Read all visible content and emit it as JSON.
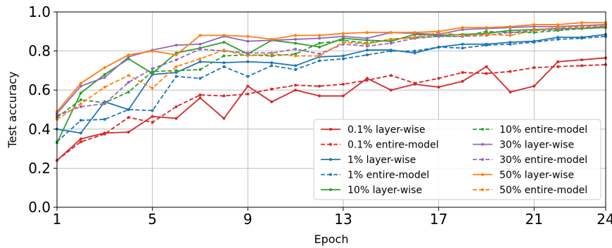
{
  "chart_data": {
    "type": "line",
    "xlabel": "Epoch",
    "ylabel": "Test accuracy",
    "xlim": [
      1,
      24
    ],
    "ylim": [
      0.0,
      1.0
    ],
    "xticks": [
      "1",
      "5",
      "9",
      "13",
      "17",
      "21",
      "24"
    ],
    "yticks": [
      "0.0",
      "0.2",
      "0.4",
      "0.6",
      "0.8",
      "1.0"
    ],
    "grid": true,
    "legend_position": "lower-right",
    "x": [
      1,
      2,
      3,
      4,
      5,
      6,
      7,
      8,
      9,
      10,
      11,
      12,
      13,
      14,
      15,
      16,
      17,
      18,
      19,
      20,
      21,
      22,
      23,
      24
    ],
    "series": [
      {
        "name": "0.1% layer-wise",
        "color": "#d62728",
        "dash": "solid",
        "values": [
          0.24,
          0.35,
          0.38,
          0.385,
          0.465,
          0.455,
          0.56,
          0.455,
          0.62,
          0.54,
          0.6,
          0.57,
          0.57,
          0.66,
          0.6,
          0.63,
          0.615,
          0.645,
          0.72,
          0.59,
          0.62,
          0.745,
          0.755,
          0.765
        ]
      },
      {
        "name": "0.1% entire-model",
        "color": "#d62728",
        "dash": "dashed",
        "values": [
          0.24,
          0.335,
          0.375,
          0.46,
          0.435,
          0.515,
          0.575,
          0.57,
          0.58,
          0.605,
          0.625,
          0.62,
          0.63,
          0.65,
          0.675,
          0.635,
          0.66,
          0.69,
          0.685,
          0.695,
          0.715,
          0.72,
          0.725,
          0.73
        ]
      },
      {
        "name": "1% layer-wise",
        "color": "#1f77b4",
        "dash": "solid",
        "values": [
          0.4,
          0.38,
          0.54,
          0.5,
          0.68,
          0.69,
          0.745,
          0.74,
          0.745,
          0.74,
          0.725,
          0.77,
          0.775,
          0.805,
          0.805,
          0.79,
          0.82,
          0.835,
          0.835,
          0.845,
          0.85,
          0.87,
          0.87,
          0.885
        ]
      },
      {
        "name": "1% entire-model",
        "color": "#1f77b4",
        "dash": "dashed",
        "values": [
          0.335,
          0.445,
          0.45,
          0.5,
          0.495,
          0.67,
          0.66,
          0.72,
          0.67,
          0.725,
          0.705,
          0.75,
          0.76,
          0.78,
          0.8,
          0.8,
          0.82,
          0.815,
          0.83,
          0.835,
          0.845,
          0.86,
          0.865,
          0.875
        ]
      },
      {
        "name": "10% layer-wise",
        "color": "#2ca02c",
        "dash": "solid",
        "values": [
          0.33,
          0.585,
          0.68,
          0.76,
          0.685,
          0.79,
          0.815,
          0.845,
          0.785,
          0.855,
          0.84,
          0.82,
          0.865,
          0.855,
          0.85,
          0.885,
          0.88,
          0.885,
          0.89,
          0.905,
          0.91,
          0.915,
          0.915,
          0.92
        ]
      },
      {
        "name": "10% entire-model",
        "color": "#2ca02c",
        "dash": "dashed",
        "values": [
          0.46,
          0.55,
          0.535,
          0.59,
          0.695,
          0.7,
          0.705,
          0.775,
          0.78,
          0.775,
          0.785,
          0.84,
          0.855,
          0.84,
          0.86,
          0.87,
          0.875,
          0.875,
          0.9,
          0.895,
          0.895,
          0.905,
          0.915,
          0.925
        ]
      },
      {
        "name": "30% layer-wise",
        "color": "#9467bd",
        "dash": "solid",
        "values": [
          0.48,
          0.62,
          0.665,
          0.77,
          0.805,
          0.83,
          0.835,
          0.875,
          0.85,
          0.855,
          0.86,
          0.865,
          0.875,
          0.865,
          0.895,
          0.89,
          0.885,
          0.91,
          0.915,
          0.92,
          0.925,
          0.925,
          0.93,
          0.935
        ]
      },
      {
        "name": "30% entire-model",
        "color": "#9467bd",
        "dash": "dashed",
        "values": [
          0.47,
          0.515,
          0.53,
          0.64,
          0.71,
          0.755,
          0.81,
          0.8,
          0.79,
          0.79,
          0.81,
          0.785,
          0.835,
          0.825,
          0.84,
          0.865,
          0.875,
          0.875,
          0.88,
          0.895,
          0.905,
          0.91,
          0.92,
          0.925
        ]
      },
      {
        "name": "50% layer-wise",
        "color": "#ff7f0e",
        "dash": "solid",
        "values": [
          0.49,
          0.635,
          0.715,
          0.78,
          0.8,
          0.78,
          0.88,
          0.88,
          0.875,
          0.86,
          0.88,
          0.88,
          0.89,
          0.895,
          0.895,
          0.895,
          0.9,
          0.92,
          0.92,
          0.925,
          0.935,
          0.935,
          0.945,
          0.945
        ]
      },
      {
        "name": "50% entire-model",
        "color": "#ff7f0e",
        "dash": "dashed",
        "values": [
          0.45,
          0.53,
          0.615,
          0.675,
          0.61,
          0.72,
          0.76,
          0.805,
          0.775,
          0.785,
          0.775,
          0.775,
          0.845,
          0.835,
          0.86,
          0.87,
          0.895,
          0.88,
          0.885,
          0.88,
          0.905,
          0.92,
          0.925,
          0.93
        ]
      }
    ]
  }
}
